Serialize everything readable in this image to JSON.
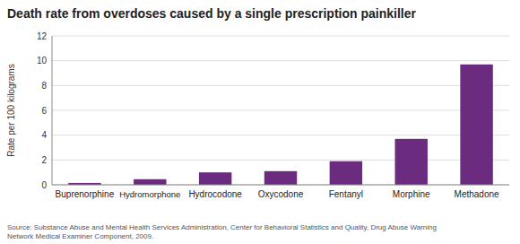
{
  "chart_data": {
    "type": "bar",
    "title": "Death rate from overdoses caused by a single prescription painkiller",
    "categories": [
      "Buprenorphine",
      "Hydromorphone",
      "Hydrocodone",
      "Oxycodone",
      "Fentanyl",
      "Morphine",
      "Methadone"
    ],
    "values": [
      0.15,
      0.45,
      1.0,
      1.1,
      1.9,
      3.7,
      9.7
    ],
    "color": "#6B2C7F",
    "ylabel": "Rate per 100 kilograms",
    "ylim": [
      0,
      12
    ],
    "yticks": [
      0,
      2,
      4,
      6,
      8,
      10,
      12
    ],
    "grid": true,
    "annotations": [
      "Source: Substance Abuse and Mental Health Services Administration, Center for Behavioral Statistics and Quality, Drug Abuse Warning\nNetwork Medical Examiner Component, 2009."
    ]
  }
}
